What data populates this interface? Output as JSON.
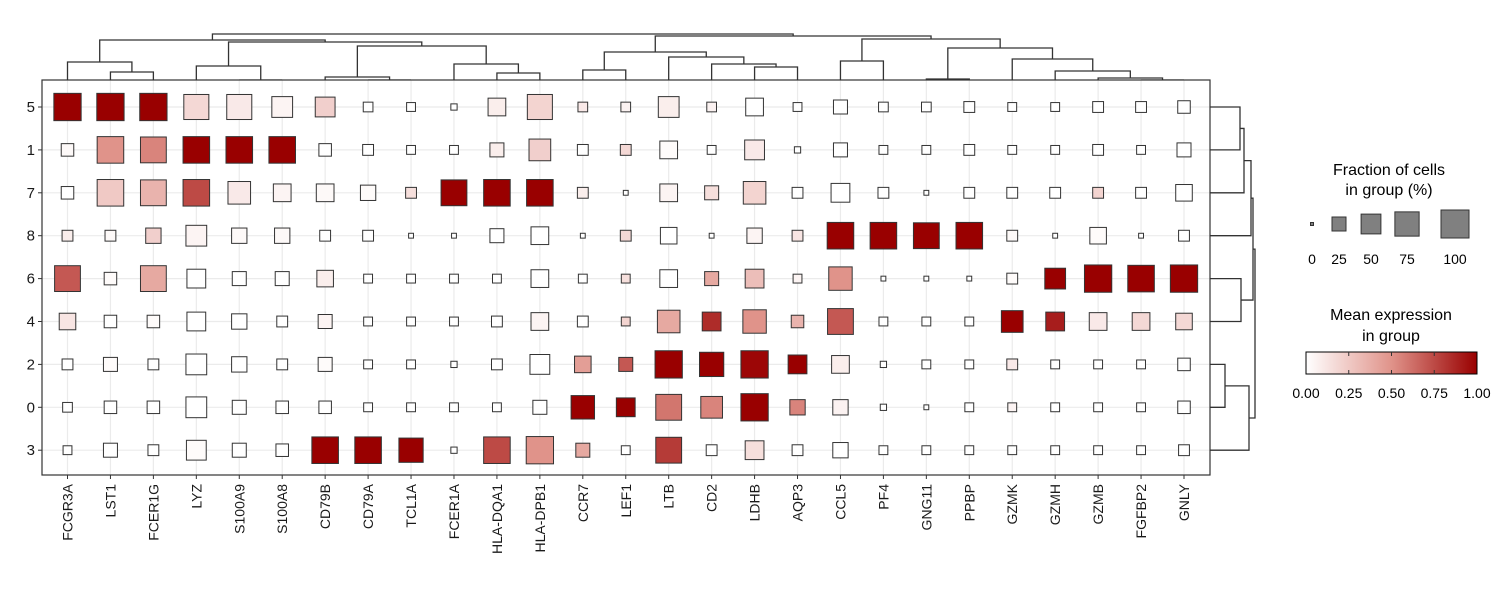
{
  "chart_data": {
    "type": "heatmap",
    "subtype": "dotplot-square",
    "title": "",
    "xlabel": "",
    "ylabel": "",
    "grid": true,
    "genes": [
      "FCGR3A",
      "LST1",
      "FCER1G",
      "LYZ",
      "S100A9",
      "S100A8",
      "CD79B",
      "CD79A",
      "TCL1A",
      "FCER1A",
      "HLA-DQA1",
      "HLA-DPB1",
      "CCR7",
      "LEF1",
      "LTB",
      "CD2",
      "LDHB",
      "AQP3",
      "CCL5",
      "PF4",
      "GNG11",
      "PPBP",
      "GZMK",
      "GZMH",
      "GZMB",
      "FGFBP2",
      "GNLY"
    ],
    "groups": [
      "5",
      "1",
      "7",
      "8",
      "6",
      "4",
      "2",
      "0",
      "3"
    ],
    "fraction": {
      "5": [
        95,
        95,
        95,
        80,
        80,
        55,
        50,
        12,
        10,
        5,
        40,
        80,
        12,
        12,
        55,
        12,
        40,
        10,
        25,
        12,
        12,
        15,
        10,
        10,
        15,
        15,
        20
      ],
      "1": [
        20,
        90,
        85,
        90,
        90,
        90,
        20,
        15,
        10,
        10,
        25,
        60,
        15,
        15,
        40,
        10,
        50,
        5,
        25,
        10,
        10,
        15,
        10,
        10,
        15,
        10,
        25
      ],
      "7": [
        20,
        90,
        85,
        90,
        65,
        40,
        40,
        30,
        15,
        85,
        90,
        90,
        15,
        3,
        40,
        25,
        65,
        15,
        45,
        15,
        3,
        15,
        15,
        15,
        15,
        15,
        35
      ],
      "8": [
        15,
        15,
        30,
        55,
        30,
        30,
        15,
        15,
        3,
        3,
        25,
        40,
        3,
        15,
        35,
        3,
        30,
        15,
        90,
        90,
        85,
        90,
        15,
        3,
        35,
        3,
        15
      ],
      "6": [
        85,
        20,
        85,
        45,
        25,
        25,
        35,
        10,
        10,
        10,
        10,
        40,
        10,
        10,
        40,
        25,
        45,
        10,
        70,
        3,
        3,
        3,
        15,
        55,
        95,
        90,
        95
      ],
      "4": [
        35,
        20,
        20,
        45,
        30,
        15,
        25,
        10,
        10,
        10,
        15,
        40,
        15,
        10,
        65,
        45,
        70,
        20,
        85,
        10,
        10,
        10,
        60,
        45,
        40,
        40,
        35
      ],
      "2": [
        15,
        25,
        15,
        55,
        30,
        15,
        25,
        10,
        10,
        5,
        15,
        50,
        35,
        25,
        95,
        75,
        95,
        45,
        40,
        5,
        10,
        10,
        15,
        10,
        10,
        10,
        20
      ],
      "0": [
        12,
        20,
        20,
        55,
        25,
        20,
        20,
        10,
        10,
        10,
        10,
        25,
        70,
        45,
        85,
        60,
        95,
        30,
        30,
        5,
        3,
        10,
        10,
        10,
        10,
        10,
        20
      ],
      "3": [
        10,
        25,
        15,
        50,
        25,
        20,
        90,
        90,
        75,
        5,
        90,
        95,
        25,
        10,
        85,
        15,
        45,
        15,
        30,
        10,
        10,
        10,
        10,
        10,
        10,
        10,
        15
      ]
    },
    "expression": {
      "5": [
        1.0,
        1.0,
        1.0,
        0.18,
        0.1,
        0.05,
        0.22,
        0.0,
        0.0,
        0.0,
        0.08,
        0.2,
        0.1,
        0.06,
        0.08,
        0.06,
        0.0,
        0.0,
        0.0,
        0.0,
        0.0,
        0.0,
        0.0,
        0.0,
        0.0,
        0.0,
        0.0
      ],
      "1": [
        0.03,
        0.5,
        0.55,
        1.0,
        1.0,
        1.0,
        0.0,
        0.0,
        0.0,
        0.0,
        0.08,
        0.22,
        0.0,
        0.18,
        0.02,
        0.0,
        0.1,
        0.0,
        0.0,
        0.0,
        0.0,
        0.0,
        0.0,
        0.0,
        0.0,
        0.0,
        0.0
      ],
      "7": [
        0.0,
        0.25,
        0.35,
        0.75,
        0.1,
        0.05,
        0.03,
        0.02,
        0.15,
        1.0,
        1.0,
        1.0,
        0.08,
        0.0,
        0.05,
        0.15,
        0.2,
        0.0,
        0.0,
        0.0,
        0.0,
        0.0,
        0.0,
        0.0,
        0.2,
        0.0,
        0.0
      ],
      "8": [
        0.08,
        0.03,
        0.22,
        0.05,
        0.03,
        0.03,
        0.0,
        0.0,
        0.0,
        0.0,
        0.0,
        0.0,
        0.0,
        0.18,
        0.0,
        0.0,
        0.05,
        0.12,
        1.0,
        1.0,
        1.0,
        1.0,
        0.03,
        0.0,
        0.02,
        0.0,
        0.0
      ],
      "6": [
        0.7,
        0.02,
        0.4,
        0.0,
        0.0,
        0.0,
        0.08,
        0.0,
        0.0,
        0.0,
        0.0,
        0.0,
        0.0,
        0.15,
        0.0,
        0.4,
        0.3,
        0.05,
        0.5,
        0.0,
        0.0,
        0.0,
        0.02,
        1.0,
        1.0,
        1.0,
        1.0
      ],
      "4": [
        0.12,
        0.0,
        0.02,
        0.0,
        0.0,
        0.0,
        0.05,
        0.0,
        0.0,
        0.0,
        0.0,
        0.05,
        0.0,
        0.2,
        0.4,
        0.85,
        0.5,
        0.35,
        0.7,
        0.0,
        0.0,
        0.0,
        1.0,
        0.9,
        0.1,
        0.18,
        0.18
      ],
      "2": [
        0.0,
        0.02,
        0.0,
        0.0,
        0.0,
        0.0,
        0.02,
        0.0,
        0.0,
        0.0,
        0.0,
        0.0,
        0.45,
        0.7,
        1.0,
        1.0,
        0.98,
        1.0,
        0.08,
        0.0,
        0.0,
        0.0,
        0.1,
        0.0,
        0.0,
        0.0,
        0.0
      ],
      "0": [
        0.0,
        0.0,
        0.0,
        0.0,
        0.0,
        0.0,
        0.0,
        0.0,
        0.0,
        0.0,
        0.0,
        0.0,
        1.0,
        1.0,
        0.6,
        0.55,
        1.0,
        0.55,
        0.06,
        0.0,
        0.0,
        0.0,
        0.05,
        0.0,
        0.0,
        0.0,
        0.0
      ],
      "3": [
        0.0,
        0.0,
        0.0,
        0.02,
        0.0,
        0.0,
        1.0,
        1.0,
        1.0,
        0.0,
        0.75,
        0.5,
        0.4,
        0.0,
        0.8,
        0.0,
        0.15,
        0.0,
        0.0,
        0.0,
        0.0,
        0.0,
        0.0,
        0.0,
        0.0,
        0.0,
        0.0
      ]
    },
    "size_legend": {
      "title_line1": "Fraction of cells",
      "title_line2": "in group (%)",
      "values": [
        0,
        25,
        50,
        75,
        100
      ],
      "labels": [
        "0",
        "25",
        "50",
        "75",
        "100"
      ],
      "color": "#808080"
    },
    "color_legend": {
      "title_line1": "Mean expression",
      "title_line2": "in group",
      "range": [
        0,
        1
      ],
      "ticks": [
        0,
        0.25,
        0.5,
        0.75,
        1.0
      ],
      "labels": [
        "0.00",
        "0.25",
        "0.50",
        "0.75",
        "1.00"
      ],
      "low_color": "#ffffff",
      "mid_color": "#e0938a",
      "high_color": "#990000"
    },
    "legend_position": "right",
    "gene_dendrogram": true,
    "group_dendrogram": true
  }
}
